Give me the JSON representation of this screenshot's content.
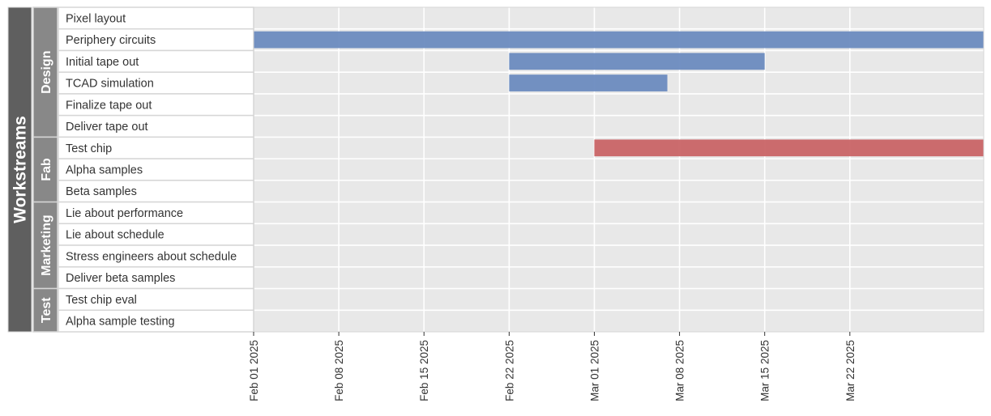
{
  "chart_data": {
    "type": "bar",
    "orientation": "horizontal",
    "subtype": "gantt",
    "title": "",
    "xlabel": "",
    "ylabel": "Workstreams",
    "xlim": [
      "2025-02-01",
      "2025-04-02"
    ],
    "grid": true,
    "x_ticks": [
      "Feb 01 2025",
      "Feb 08 2025",
      "Feb 15 2025",
      "Feb 22 2025",
      "Mar 01 2025",
      "Mar 08 2025",
      "Mar 15 2025",
      "Mar 22 2025"
    ],
    "x_tick_dates": [
      "2025-02-01",
      "2025-02-08",
      "2025-02-15",
      "2025-02-22",
      "2025-03-01",
      "2025-03-08",
      "2025-03-15",
      "2025-03-22"
    ],
    "groups": [
      {
        "name": "Design",
        "color": "#6b8bbf",
        "tasks": [
          {
            "name": "Pixel layout",
            "start": null,
            "end": null
          },
          {
            "name": "Periphery circuits",
            "start": "2025-02-01",
            "end": "2025-04-02"
          },
          {
            "name": "Initial tape out",
            "start": "2025-02-22",
            "end": "2025-03-15"
          },
          {
            "name": "TCAD simulation",
            "start": "2025-02-22",
            "end": "2025-03-07"
          },
          {
            "name": "Finalize tape out",
            "start": null,
            "end": null
          },
          {
            "name": "Deliver tape out",
            "start": null,
            "end": null
          }
        ]
      },
      {
        "name": "Fab",
        "color": "#c96466",
        "tasks": [
          {
            "name": "Test chip",
            "start": "2025-03-01",
            "end": "2025-04-02"
          },
          {
            "name": "Alpha samples",
            "start": null,
            "end": null
          },
          {
            "name": "Beta samples",
            "start": null,
            "end": null
          }
        ]
      },
      {
        "name": "Marketing",
        "color": "#6b8bbf",
        "tasks": [
          {
            "name": "Lie about performance",
            "start": null,
            "end": null
          },
          {
            "name": "Lie about schedule",
            "start": null,
            "end": null
          },
          {
            "name": "Stress engineers about schedule",
            "start": null,
            "end": null
          },
          {
            "name": "Deliver beta samples",
            "start": null,
            "end": null
          }
        ]
      },
      {
        "name": "Test",
        "color": "#6b8bbf",
        "tasks": [
          {
            "name": "Test chip eval",
            "start": null,
            "end": null
          },
          {
            "name": "Alpha sample testing",
            "start": null,
            "end": null
          }
        ]
      }
    ]
  },
  "colors": {
    "plot_background": "#e8e8e8",
    "grid": "#ffffff",
    "outer_label_band": "#5f5f5f",
    "group_label_band": "#888888",
    "task_label_background": "#ffffff",
    "cell_border": "#d6d6d6"
  }
}
